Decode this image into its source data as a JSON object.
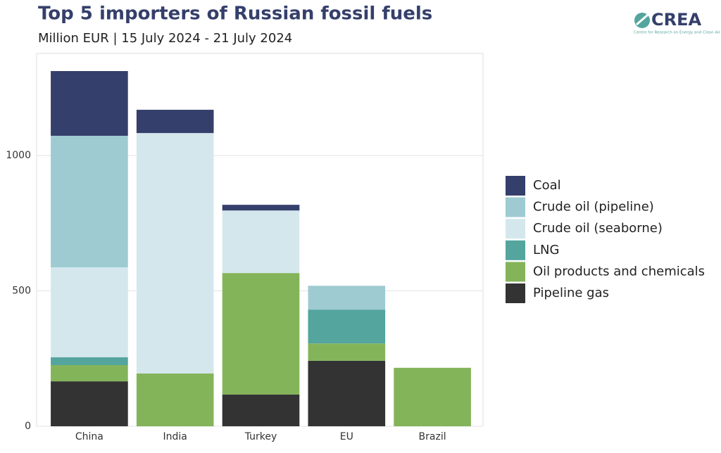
{
  "chart_data": {
    "type": "stacked_bar",
    "title": "Top 5 importers of Russian fossil fuels",
    "subtitle": "Million EUR | 15 July 2024 - 21 July 2024",
    "logo": {
      "name": "CREA",
      "tagline": "Centre for Research on Energy and Clean Air"
    },
    "categories": [
      "China",
      "India",
      "Turkey",
      "EU",
      "Brazil"
    ],
    "series": [
      {
        "name": "Coal",
        "color": "#353f6b",
        "values": [
          239,
          86,
          21,
          0,
          0
        ]
      },
      {
        "name": "Crude oil (pipeline)",
        "color": "#9ecbd2",
        "values": [
          486,
          0,
          0,
          88,
          0
        ]
      },
      {
        "name": "Crude oil (seaborne)",
        "color": "#d4e7ec",
        "values": [
          332,
          888,
          231,
          0,
          0
        ]
      },
      {
        "name": "LNG",
        "color": "#53a59e",
        "values": [
          29,
          0,
          0,
          125,
          0
        ]
      },
      {
        "name": "Oil products and chemicals",
        "color": "#84b45a",
        "values": [
          60,
          195,
          449,
          64,
          216
        ]
      },
      {
        "name": "Pipeline gas",
        "color": "#333333",
        "values": [
          166,
          0,
          117,
          242,
          0
        ]
      }
    ],
    "ylim": [
      0,
      1377
    ],
    "yticks": [
      0,
      500,
      1000
    ],
    "grid": true,
    "legend": "right"
  }
}
